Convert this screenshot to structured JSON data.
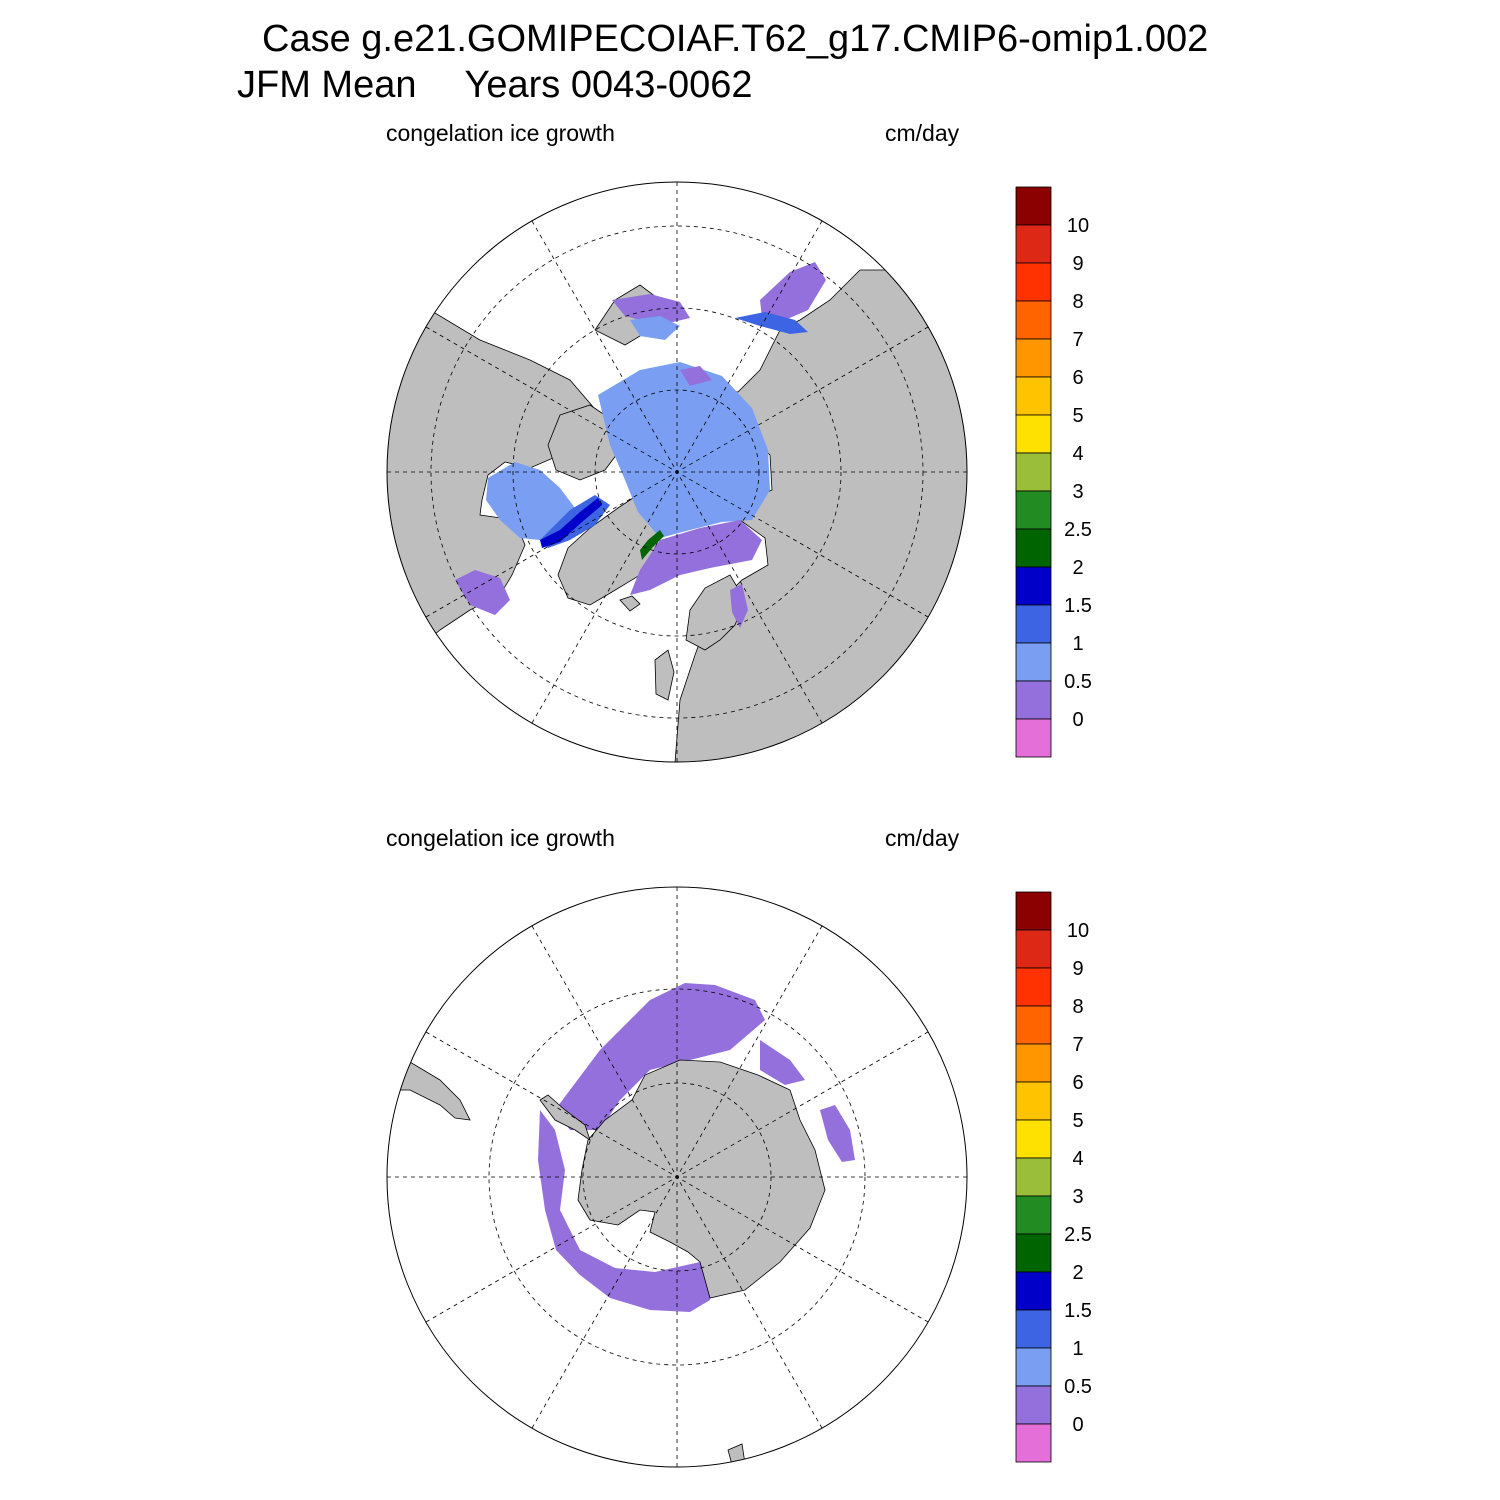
{
  "header": {
    "case_line": "Case g.e21.GOMIPECOIAF.T62_g17.CMIP6-omip1.002",
    "season": "JFM Mean",
    "years": "Years 0043-0062"
  },
  "colors": {
    "land": "#bebebe",
    "ocean": "#ffffff",
    "scale": [
      "#e46fd8",
      "#9370db",
      "#7a9ff2",
      "#3d65e3",
      "#0000c8",
      "#006400",
      "#228b22",
      "#9abe37",
      "#ffe100",
      "#ffc300",
      "#ff9600",
      "#ff6400",
      "#ff3200",
      "#dc2814",
      "#8b0000"
    ]
  },
  "panels": [
    {
      "id": "north",
      "variable": "congelation ice growth",
      "units": "cm/day",
      "hemisphere": "Northern Hemisphere",
      "colorbar": {
        "labels": [
          "0",
          "0.5",
          "1",
          "1.5",
          "2",
          "2.5",
          "3",
          "4",
          "5",
          "6",
          "7",
          "8",
          "9",
          "10"
        ]
      }
    },
    {
      "id": "south",
      "variable": "congelation ice growth",
      "units": "cm/day",
      "hemisphere": "Southern Hemisphere",
      "colorbar": {
        "labels": [
          "0",
          "0.5",
          "1",
          "1.5",
          "2",
          "2.5",
          "3",
          "4",
          "5",
          "6",
          "7",
          "8",
          "9",
          "10"
        ]
      }
    }
  ]
}
